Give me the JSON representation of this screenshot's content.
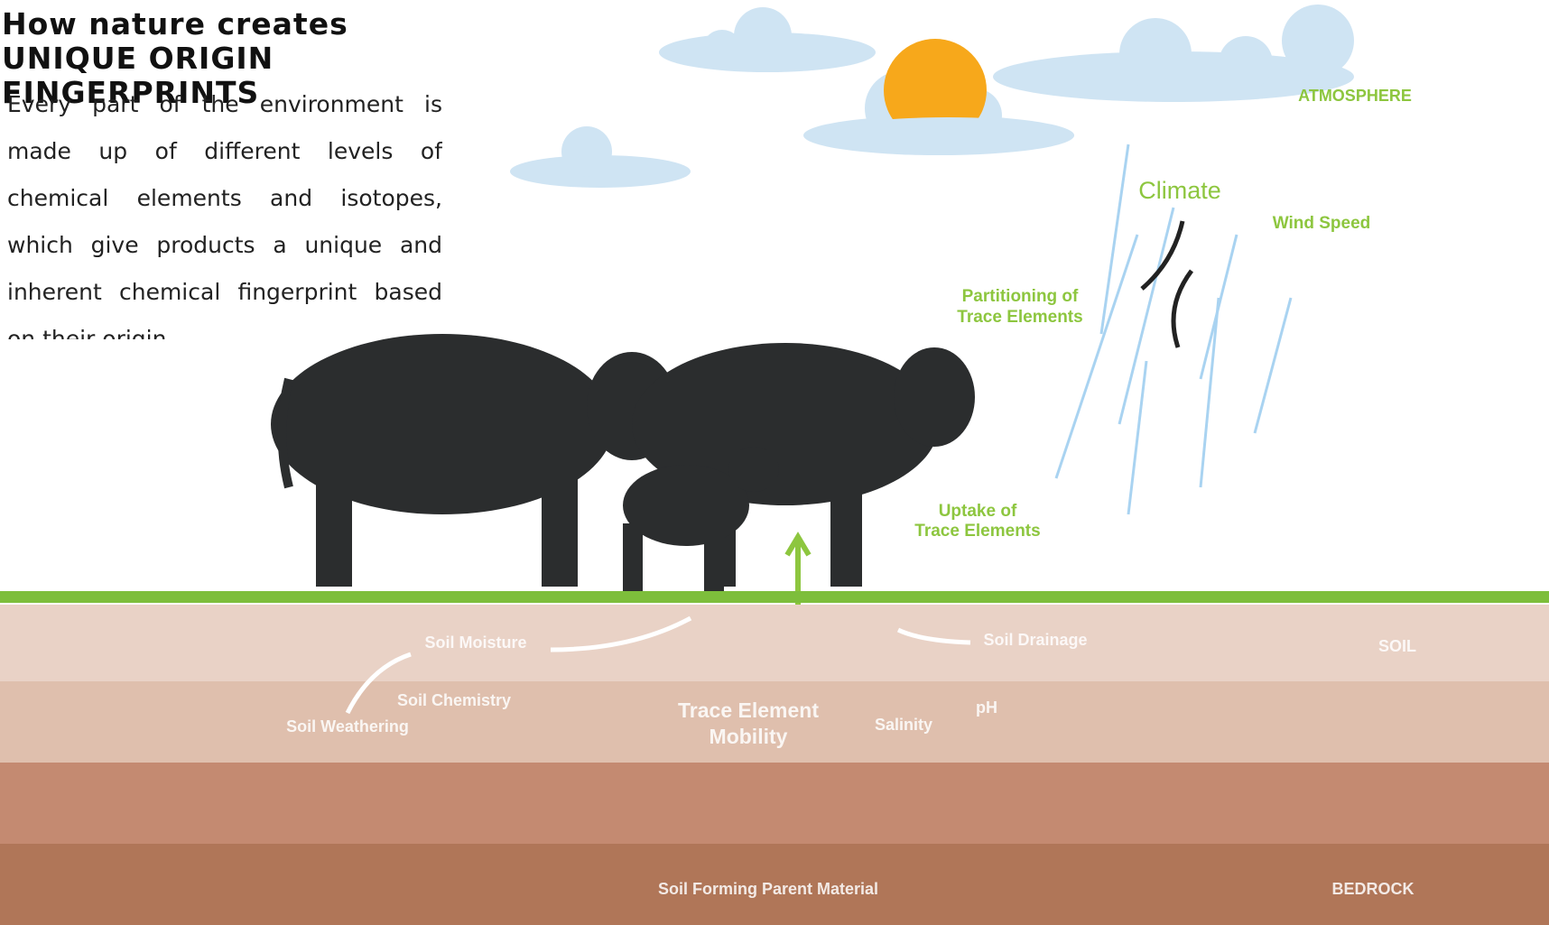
{
  "header": {
    "title": "How nature creates UNIQUE ORIGIN FINGERPRINTS",
    "body": "Every part of the environment is made up of different levels of chemical elements and isotopes, which give products a unique and inherent chemical fingerprint based on their origin."
  },
  "diagram": {
    "atmosphere": "ATMOSPHERE",
    "climate": "Climate",
    "wind_speed": "Wind Speed",
    "partitioning": [
      "Partitioning of",
      "Trace Elements"
    ],
    "uptake": [
      "Uptake of",
      "Trace Elements"
    ],
    "soil_moisture": "Soil Moisture",
    "soil_drainage": "Soil Drainage",
    "soil": "SOIL",
    "soil_chemistry": "Soil Chemistry",
    "soil_weathering": "Soil Weathering",
    "mobility": [
      "Trace Element",
      "Mobility"
    ],
    "salinity": "Salinity",
    "ph": "pH",
    "parent_material": "Soil Forming Parent Material",
    "bedrock": "BEDROCK"
  }
}
